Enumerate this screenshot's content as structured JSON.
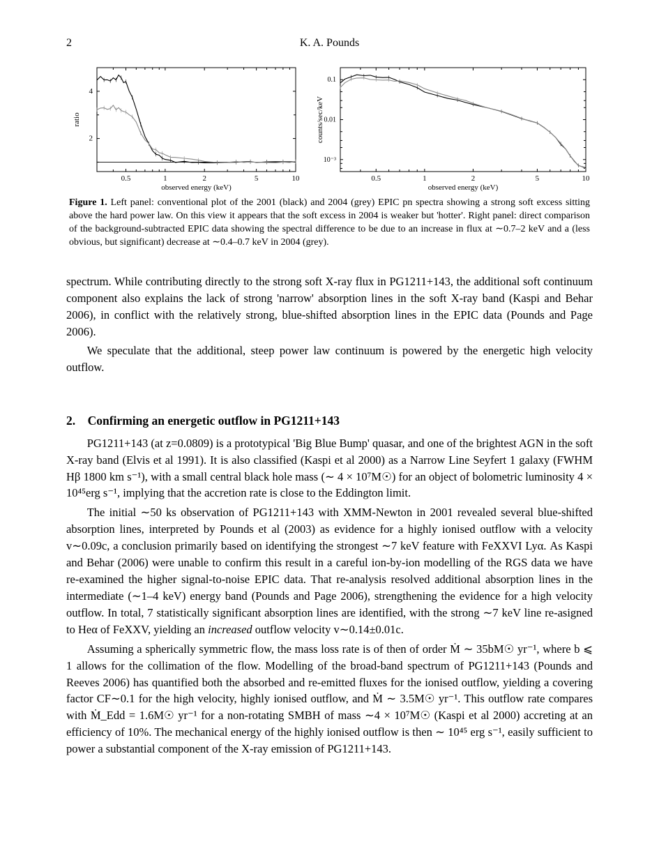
{
  "header": {
    "page_number": "2",
    "author": "K. A. Pounds"
  },
  "figure1": {
    "left_panel": {
      "type": "line",
      "xlabel": "observed energy (keV)",
      "ylabel": "ratio",
      "xlim": [
        0.3,
        10
      ],
      "ylim": [
        0.6,
        5
      ],
      "xscale": "log",
      "yscale": "linear",
      "xticks": [
        "0.5",
        "1",
        "2",
        "5",
        "10"
      ],
      "yticks": [
        "2",
        "4"
      ],
      "background_color": "#ffffff",
      "series": [
        {
          "name": "2001",
          "color": "#000000",
          "points": [
            [
              0.3,
              4.5
            ],
            [
              0.32,
              4.6
            ],
            [
              0.34,
              4.5
            ],
            [
              0.36,
              4.6
            ],
            [
              0.38,
              4.55
            ],
            [
              0.4,
              4.55
            ],
            [
              0.42,
              4.5
            ],
            [
              0.44,
              4.55
            ],
            [
              0.46,
              4.5
            ],
            [
              0.48,
              4.4
            ],
            [
              0.5,
              4.3
            ],
            [
              0.53,
              4.0
            ],
            [
              0.56,
              3.7
            ],
            [
              0.6,
              3.2
            ],
            [
              0.65,
              2.6
            ],
            [
              0.7,
              2.1
            ],
            [
              0.75,
              1.75
            ],
            [
              0.8,
              1.5
            ],
            [
              0.85,
              1.35
            ],
            [
              0.9,
              1.25
            ],
            [
              0.95,
              1.18
            ],
            [
              1.0,
              1.12
            ],
            [
              1.1,
              1.05
            ],
            [
              1.2,
              1.02
            ],
            [
              1.4,
              1.0
            ],
            [
              1.6,
              1.0
            ],
            [
              1.8,
              1.0
            ],
            [
              2.0,
              1.0
            ],
            [
              2.5,
              1.0
            ],
            [
              3.0,
              1.0
            ],
            [
              3.5,
              1.0
            ],
            [
              4.0,
              1.0
            ],
            [
              4.5,
              1.0
            ],
            [
              5.0,
              1.0
            ],
            [
              6.0,
              1.0
            ],
            [
              7.0,
              1.0
            ],
            [
              8.0,
              1.0
            ],
            [
              9.0,
              1.0
            ],
            [
              10.0,
              1.0
            ]
          ]
        },
        {
          "name": "2004",
          "color": "#8a8a8a",
          "points": [
            [
              0.3,
              3.2
            ],
            [
              0.32,
              3.3
            ],
            [
              0.34,
              3.25
            ],
            [
              0.36,
              3.3
            ],
            [
              0.38,
              3.25
            ],
            [
              0.4,
              3.3
            ],
            [
              0.42,
              3.3
            ],
            [
              0.44,
              3.25
            ],
            [
              0.46,
              3.3
            ],
            [
              0.48,
              3.2
            ],
            [
              0.5,
              3.15
            ],
            [
              0.53,
              3.1
            ],
            [
              0.56,
              2.9
            ],
            [
              0.6,
              2.65
            ],
            [
              0.65,
              2.3
            ],
            [
              0.7,
              2.0
            ],
            [
              0.75,
              1.8
            ],
            [
              0.8,
              1.6
            ],
            [
              0.85,
              1.5
            ],
            [
              0.9,
              1.4
            ],
            [
              0.95,
              1.35
            ],
            [
              1.0,
              1.3
            ],
            [
              1.1,
              1.25
            ],
            [
              1.2,
              1.2
            ],
            [
              1.4,
              1.15
            ],
            [
              1.6,
              1.1
            ],
            [
              1.8,
              1.08
            ],
            [
              2.0,
              1.05
            ],
            [
              2.5,
              1.0
            ],
            [
              3.0,
              1.0
            ],
            [
              3.5,
              1.0
            ],
            [
              4.0,
              1.0
            ],
            [
              4.5,
              1.0
            ],
            [
              5.0,
              1.0
            ],
            [
              6.0,
              1.0
            ],
            [
              7.0,
              1.0
            ],
            [
              8.0,
              1.0
            ],
            [
              9.0,
              1.0
            ],
            [
              10.0,
              1.0
            ]
          ]
        }
      ]
    },
    "right_panel": {
      "type": "line",
      "xlabel": "observed energy (keV)",
      "ylabel": "counts/sec/keV",
      "xlim": [
        0.3,
        10
      ],
      "ylim": [
        0.0005,
        0.2
      ],
      "xscale": "log",
      "yscale": "log",
      "xticks": [
        "0.5",
        "1",
        "2",
        "5",
        "10"
      ],
      "yticks": [
        "10⁻³",
        "0.01",
        "0.1"
      ],
      "background_color": "#ffffff",
      "series": [
        {
          "name": "2001",
          "color": "#000000",
          "points": [
            [
              0.3,
              0.08
            ],
            [
              0.32,
              0.1
            ],
            [
              0.35,
              0.12
            ],
            [
              0.38,
              0.13
            ],
            [
              0.42,
              0.13
            ],
            [
              0.46,
              0.125
            ],
            [
              0.5,
              0.12
            ],
            [
              0.55,
              0.115
            ],
            [
              0.6,
              0.11
            ],
            [
              0.65,
              0.1
            ],
            [
              0.7,
              0.09
            ],
            [
              0.8,
              0.075
            ],
            [
              0.9,
              0.062
            ],
            [
              1.0,
              0.05
            ],
            [
              1.2,
              0.04
            ],
            [
              1.4,
              0.034
            ],
            [
              1.6,
              0.03
            ],
            [
              1.8,
              0.027
            ],
            [
              2.0,
              0.024
            ],
            [
              2.5,
              0.019
            ],
            [
              3.0,
              0.016
            ],
            [
              3.5,
              0.013
            ],
            [
              4.0,
              0.011
            ],
            [
              4.5,
              0.0095
            ],
            [
              5.0,
              0.008
            ],
            [
              5.5,
              0.0065
            ],
            [
              6.0,
              0.005
            ],
            [
              6.5,
              0.0035
            ],
            [
              7.0,
              0.0025
            ],
            [
              7.5,
              0.0018
            ],
            [
              8.0,
              0.0012
            ],
            [
              8.5,
              0.0009
            ],
            [
              9.0,
              0.0007
            ],
            [
              10.0,
              0.0006
            ]
          ]
        },
        {
          "name": "2004",
          "color": "#8a8a8a",
          "points": [
            [
              0.3,
              0.065
            ],
            [
              0.32,
              0.085
            ],
            [
              0.35,
              0.1
            ],
            [
              0.38,
              0.11
            ],
            [
              0.42,
              0.11
            ],
            [
              0.46,
              0.105
            ],
            [
              0.5,
              0.1
            ],
            [
              0.55,
              0.1
            ],
            [
              0.6,
              0.095
            ],
            [
              0.65,
              0.095
            ],
            [
              0.7,
              0.09
            ],
            [
              0.8,
              0.082
            ],
            [
              0.9,
              0.072
            ],
            [
              1.0,
              0.06
            ],
            [
              1.2,
              0.048
            ],
            [
              1.4,
              0.04
            ],
            [
              1.6,
              0.034
            ],
            [
              1.8,
              0.03
            ],
            [
              2.0,
              0.026
            ],
            [
              2.5,
              0.02
            ],
            [
              3.0,
              0.016
            ],
            [
              3.5,
              0.013
            ],
            [
              4.0,
              0.011
            ],
            [
              4.5,
              0.0095
            ],
            [
              5.0,
              0.008
            ],
            [
              5.5,
              0.0065
            ],
            [
              6.0,
              0.005
            ],
            [
              6.5,
              0.0035
            ],
            [
              7.0,
              0.0025
            ],
            [
              7.5,
              0.0018
            ],
            [
              8.0,
              0.0012
            ],
            [
              8.5,
              0.0009
            ],
            [
              9.0,
              0.0007
            ],
            [
              10.0,
              0.0006
            ]
          ]
        }
      ]
    },
    "caption_label": "Figure 1.",
    "caption_text": " Left panel: conventional plot of the 2001 (black) and 2004 (grey) EPIC pn spectra showing a strong soft excess sitting above the hard power law. On this view it appears that the soft excess in 2004 is weaker but 'hotter'. Right panel: direct comparison of the background-subtracted EPIC data showing the spectral difference to be due to an increase in flux at ∼0.7–2 keV and a (less obvious, but significant) decrease at ∼0.4–0.7 keV in 2004 (grey)."
  },
  "paragraphs": {
    "p1": "spectrum. While contributing directly to the strong soft X-ray flux in PG1211+143, the additional soft continuum component also explains the lack of strong 'narrow' absorption lines in the soft X-ray band (Kaspi and Behar 2006), in conflict with the relatively strong, blue-shifted absorption lines in the EPIC data (Pounds and Page 2006).",
    "p2": "We speculate that the additional, steep power law continuum is powered by the energetic high velocity outflow.",
    "section2_heading": "2. Confirming an energetic outflow in PG1211+143",
    "p3": "PG1211+143 (at z=0.0809) is a prototypical 'Big Blue Bump' quasar, and one of the brightest AGN in the soft X-ray band (Elvis et al 1991). It is also classified (Kaspi et al 2000) as a Narrow Line Seyfert 1 galaxy (FWHM Hβ 1800 km s⁻¹), with a small central black hole mass (∼ 4 × 10⁷M☉) for an object of bolometric luminosity 4 × 10⁴⁵erg s⁻¹, implying that the accretion rate is close to the Eddington limit.",
    "p4_a": "The initial ∼50 ks observation of PG1211+143 with XMM-Newton in 2001 revealed several blue-shifted absorption lines, interpreted by Pounds et al (2003) as evidence for a highly ionised outflow with a velocity v∼0.09c, a conclusion primarily based on identifying the strongest ∼7 keV feature with FeXXVI Lyα. As Kaspi and Behar (2006) were unable to confirm this result in a careful ion-by-ion modelling of the RGS data we have re-examined the higher signal-to-noise EPIC data. That re-analysis resolved additional absorption lines in the intermediate (∼1–4 keV) energy band (Pounds and Page 2006), strengthening the evidence for a high velocity outflow. In total, 7 statistically significant absorption lines are identified, with the strong ∼7 keV line re-asigned to Heα of FeXXV, yielding an ",
    "p4_em": "increased",
    "p4_b": " outflow velocity v∼0.14±0.01c.",
    "p5": "Assuming a spherically symmetric flow, the mass loss rate is of then of order Ṁ ∼ 35bM☉ yr⁻¹, where b ⩽ 1 allows for the collimation of the flow. Modelling of the broad-band spectrum of PG1211+143 (Pounds and Reeves 2006) has quantified both the absorbed and re-emitted fluxes for the ionised outflow, yielding a covering factor CF∼0.1 for the high velocity, highly ionised outflow, and Ṁ ∼ 3.5M☉ yr⁻¹. This outflow rate compares with Ṁ_Edd = 1.6M☉ yr⁻¹ for a non-rotating SMBH of mass ∼4 × 10⁷M☉ (Kaspi et al 2000) accreting at an efficiency of 10%. The mechanical energy of the highly ionised outflow is then ∼ 10⁴⁵ erg s⁻¹, easily sufficient to power a substantial component of the X-ray emission of PG1211+143."
  }
}
